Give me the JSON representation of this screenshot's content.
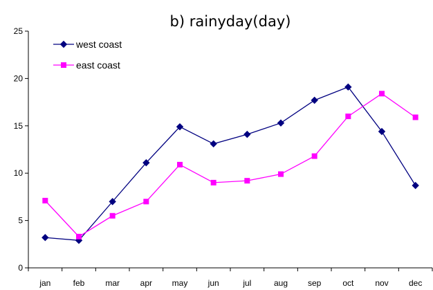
{
  "chart_data": {
    "type": "line",
    "title": "b) rainyday(day)",
    "xlabel": "",
    "ylabel": "",
    "categories": [
      "jan",
      "feb",
      "mar",
      "apr",
      "may",
      "jun",
      "jul",
      "aug",
      "sep",
      "oct",
      "nov",
      "dec"
    ],
    "ylim": [
      0,
      25
    ],
    "yticks": [
      0,
      5,
      10,
      15,
      20,
      25
    ],
    "grid": false,
    "legend_position": "top-left",
    "series": [
      {
        "name": "west coast",
        "color": "#000080",
        "marker": "diamond",
        "values": [
          3.2,
          2.9,
          7.0,
          11.1,
          14.9,
          13.1,
          14.1,
          15.3,
          17.7,
          19.1,
          14.4,
          8.7
        ]
      },
      {
        "name": "east coast",
        "color": "#ff00ff",
        "marker": "square",
        "values": [
          7.1,
          3.3,
          5.5,
          7.0,
          10.9,
          9.0,
          9.2,
          9.9,
          11.8,
          16.0,
          18.4,
          15.9
        ]
      }
    ]
  }
}
